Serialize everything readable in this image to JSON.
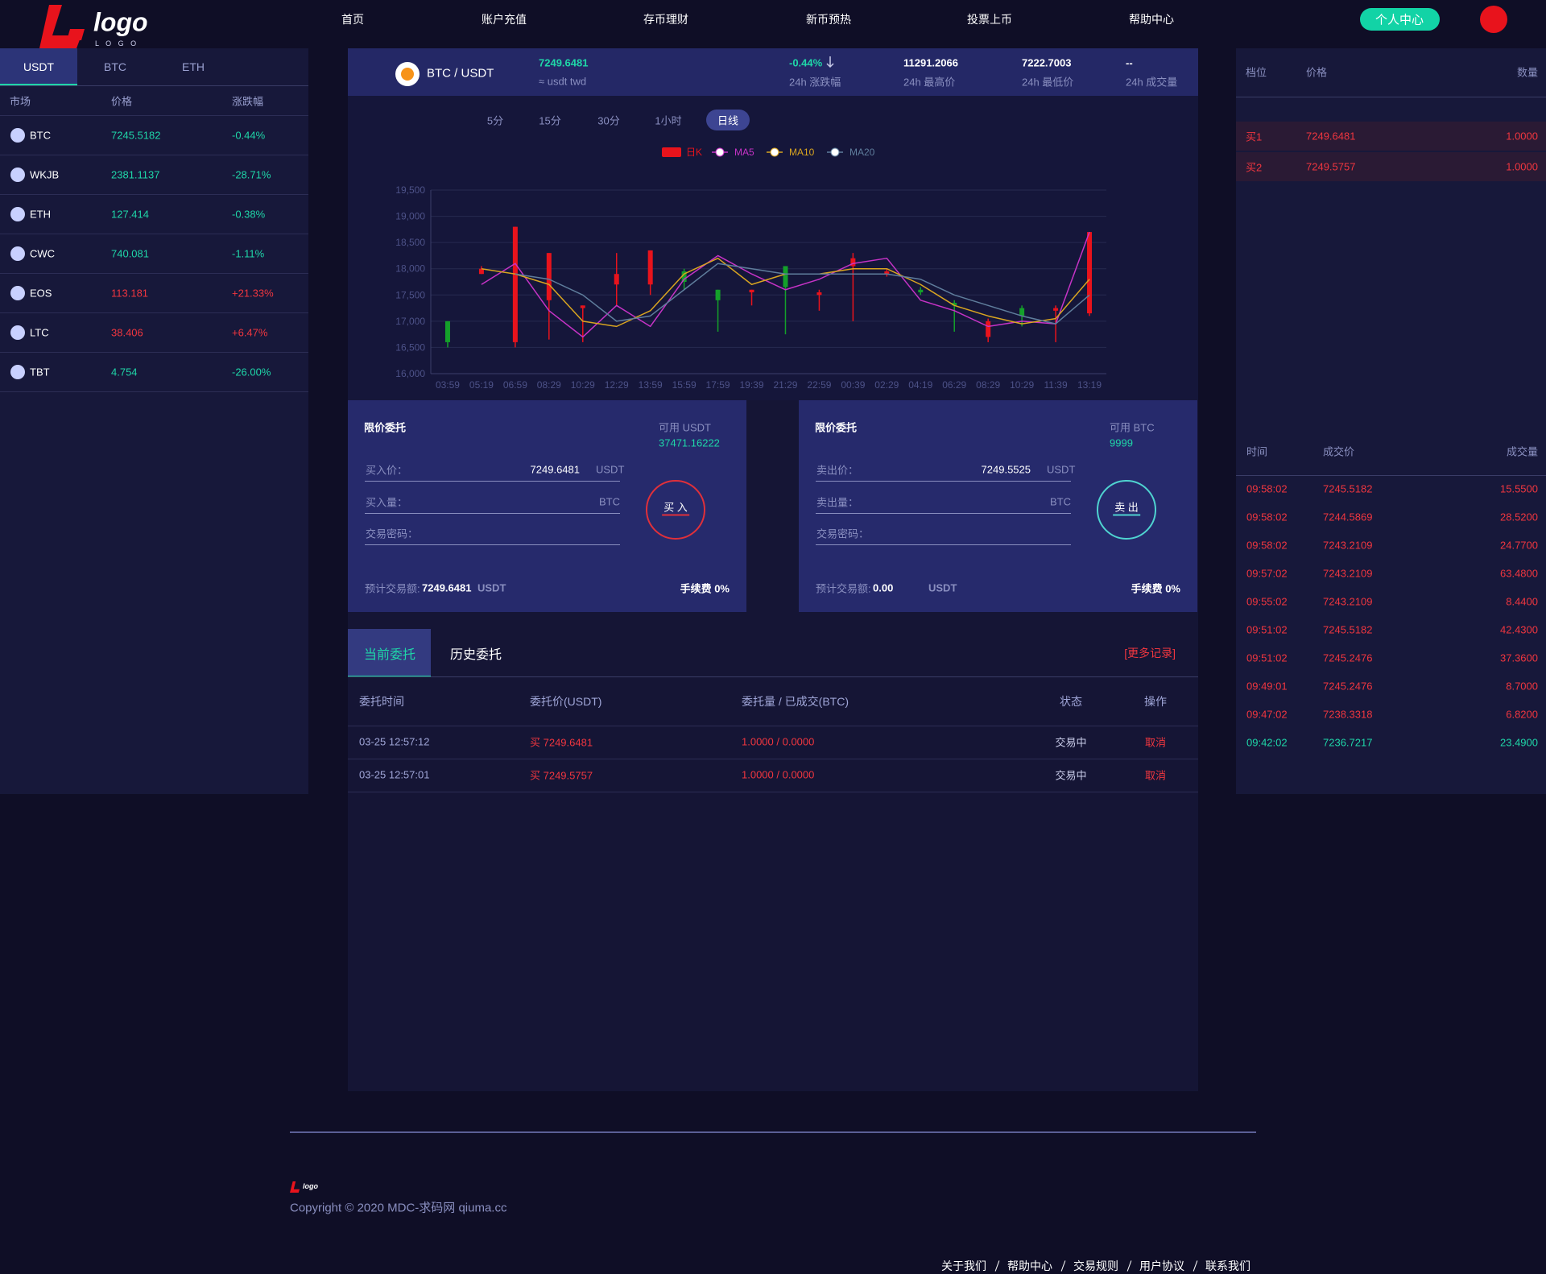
{
  "header": {
    "logo": "logo",
    "logo_sub": "L O G O",
    "nav": [
      "首页",
      "账户充值",
      "存币理财",
      "新币预热",
      "投票上币",
      "帮助中心"
    ],
    "user_button": "个人中心"
  },
  "markets": {
    "tabs": [
      "USDT",
      "BTC",
      "ETH"
    ],
    "columns": [
      "市场",
      "价格",
      "涨跌幅"
    ],
    "rows": [
      [
        "BTC",
        "7245.5182",
        "-0.44%"
      ],
      [
        "WKJB",
        "2381.1137",
        "-28.71%"
      ],
      [
        "ETH",
        "127.414",
        "-0.38%"
      ],
      [
        "CWC",
        "740.081",
        "-1.11%"
      ],
      [
        "EOS",
        "113.181",
        "+21.33%"
      ],
      [
        "LTC",
        "38.406",
        "+6.47%"
      ],
      [
        "TBT",
        "4.754",
        "-26.00%"
      ]
    ]
  },
  "ticker": {
    "pair": "BTC / USDT",
    "price": "7249.6481",
    "price_sub": "≈ usdt twd",
    "stats": [
      {
        "value": "-0.44%",
        "label": "24h 涨跌幅"
      },
      {
        "value": "11291.2066",
        "label": "24h 最高价"
      },
      {
        "value": "7222.7003",
        "label": "24h 最低价"
      },
      {
        "value": "--",
        "label": "24h 成交量"
      }
    ]
  },
  "periods": [
    "5分",
    "15分",
    "30分",
    "1小时",
    "日线"
  ],
  "chart_data": {
    "type": "candlestick",
    "categories": [
      "03:59",
      "05:19",
      "06:59",
      "08:29",
      "10:29",
      "12:29",
      "13:59",
      "15:59",
      "17:59",
      "19:39",
      "21:29",
      "22:59",
      "00:39",
      "02:29",
      "04:19",
      "06:29",
      "08:29",
      "10:29",
      "11:39",
      "13:19"
    ],
    "ylim": [
      16000,
      19500
    ],
    "yticks": [
      {
        "value": 16000,
        "label": "16,000"
      },
      {
        "value": 16500,
        "label": "16,500"
      },
      {
        "value": 17000,
        "label": "17,000"
      },
      {
        "value": 17500,
        "label": "17,500"
      },
      {
        "value": 18000,
        "label": "18,000"
      },
      {
        "value": 18500,
        "label": "18,500"
      },
      {
        "value": 19000,
        "label": "19,000"
      },
      {
        "value": 19500,
        "label": "19,500"
      }
    ],
    "grid": true,
    "candles": {
      "name": "日K",
      "up_color": "#e8131c",
      "down_color": "#14a02a",
      "open": [
        17000,
        17900,
        16600,
        17400,
        17250,
        17700,
        17700,
        17950,
        17600,
        17550,
        18050,
        17500,
        18050,
        17900,
        17600,
        17350,
        16700,
        17250,
        17200,
        17150
      ],
      "close": [
        16600,
        18000,
        18800,
        18300,
        17300,
        17900,
        18350,
        17750,
        17400,
        17600,
        17650,
        17550,
        18200,
        17950,
        17550,
        17300,
        17000,
        17100,
        17250,
        18700
      ],
      "high": [
        17000,
        18050,
        18800,
        18300,
        17300,
        18300,
        18350,
        18000,
        17600,
        17600,
        18050,
        17600,
        18300,
        18000,
        17650,
        17400,
        17050,
        17300,
        17300,
        18700
      ],
      "low": [
        16500,
        17900,
        16500,
        16650,
        16600,
        17300,
        17500,
        17600,
        16800,
        17300,
        16750,
        17200,
        17000,
        17850,
        17500,
        16800,
        16600,
        16900,
        16600,
        17100
      ]
    },
    "series": [
      {
        "name": "MA5",
        "color": "#c633c6",
        "values": [
          null,
          17700,
          18100,
          17200,
          16700,
          17300,
          16900,
          17800,
          18250,
          17900,
          17600,
          17800,
          18100,
          18200,
          17400,
          17200,
          16900,
          17000,
          16950,
          18700
        ]
      },
      {
        "name": "MA10",
        "color": "#d9a520",
        "values": [
          null,
          18000,
          17900,
          17700,
          17000,
          16900,
          17200,
          17900,
          18200,
          17700,
          17900,
          17900,
          18000,
          18000,
          17700,
          17300,
          17100,
          16950,
          17050,
          17800
        ]
      },
      {
        "name": "MA20",
        "color": "#5f7d9c",
        "values": [
          null,
          null,
          17900,
          17800,
          17500,
          17000,
          17100,
          17600,
          18100,
          18000,
          17900,
          17900,
          17900,
          17900,
          17800,
          17500,
          17300,
          17100,
          16950,
          17500
        ]
      }
    ]
  },
  "buy_form": {
    "title": "限价委托",
    "avail_label": "可用 USDT",
    "avail": "37471.16222",
    "price_label": "买入价：",
    "price": "7249.6481",
    "price_unit": "USDT",
    "amount_label": "买入量：",
    "amount_unit": "BTC",
    "password_label": "交易密码：",
    "estimate_label": "预计交易额:",
    "estimate": "7249.6481",
    "estimate_unit": "USDT",
    "fee": "手续费 0%",
    "button": "买 入"
  },
  "sell_form": {
    "title": "限价委托",
    "avail_label": "可用 BTC",
    "avail": "9999",
    "price_label": "卖出价：",
    "price": "7249.5525",
    "price_unit": "USDT",
    "amount_label": "卖出量：",
    "amount_unit": "BTC",
    "password_label": "交易密码：",
    "estimate_label": "预计交易额:",
    "estimate": "0.00",
    "estimate_unit": "USDT",
    "fee": "手续费 0%",
    "button": "卖 出"
  },
  "orders": {
    "tabs": [
      "当前委托",
      "历史委托"
    ],
    "more": "[更多记录]",
    "columns": [
      "委托时间",
      "委托价(USDT)",
      "委托量 / 已成交(BTC)",
      "状态",
      "操作"
    ],
    "rows": [
      [
        "03-25 12:57:12",
        "买 7249.6481",
        "1.0000 / 0.0000",
        "交易中",
        "取消"
      ],
      [
        "03-25 12:57:01",
        "买 7249.5757",
        "1.0000 / 0.0000",
        "交易中",
        "取消"
      ]
    ]
  },
  "order_book": {
    "columns": [
      "档位",
      "价格",
      "数量"
    ],
    "rows": [
      [
        "买1",
        "7249.6481",
        "1.0000"
      ],
      [
        "买2",
        "7249.5757",
        "1.0000"
      ]
    ]
  },
  "trades": {
    "columns": [
      "时间",
      "成交价",
      "成交量"
    ],
    "rows": [
      {
        "time": "09:58:02",
        "price": "7245.5182",
        "amount": "15.5500",
        "color": "#f0363f"
      },
      {
        "time": "09:58:02",
        "price": "7244.5869",
        "amount": "28.5200",
        "color": "#f0363f"
      },
      {
        "time": "09:58:02",
        "price": "7243.2109",
        "amount": "24.7700",
        "color": "#f0363f"
      },
      {
        "time": "09:57:02",
        "price": "7243.2109",
        "amount": "63.4800",
        "color": "#f0363f"
      },
      {
        "time": "09:55:02",
        "price": "7243.2109",
        "amount": "8.4400",
        "color": "#f0363f"
      },
      {
        "time": "09:51:02",
        "price": "7245.5182",
        "amount": "42.4300",
        "color": "#f0363f"
      },
      {
        "time": "09:51:02",
        "price": "7245.2476",
        "amount": "37.3600",
        "color": "#f0363f"
      },
      {
        "time": "09:49:01",
        "price": "7245.2476",
        "amount": "8.7000",
        "color": "#f0363f"
      },
      {
        "time": "09:47:02",
        "price": "7238.3318",
        "amount": "6.8200",
        "color": "#f0363f"
      },
      {
        "time": "09:42:02",
        "price": "7236.7217",
        "amount": "23.4900",
        "color": "#1fd6a8"
      }
    ]
  },
  "footer": {
    "copyright": "Copyright © 2020 MDC-求码网 qiuma.cc",
    "links": [
      "关于我们",
      "帮助中心",
      "交易规则",
      "用户协议",
      "联系我们"
    ]
  }
}
